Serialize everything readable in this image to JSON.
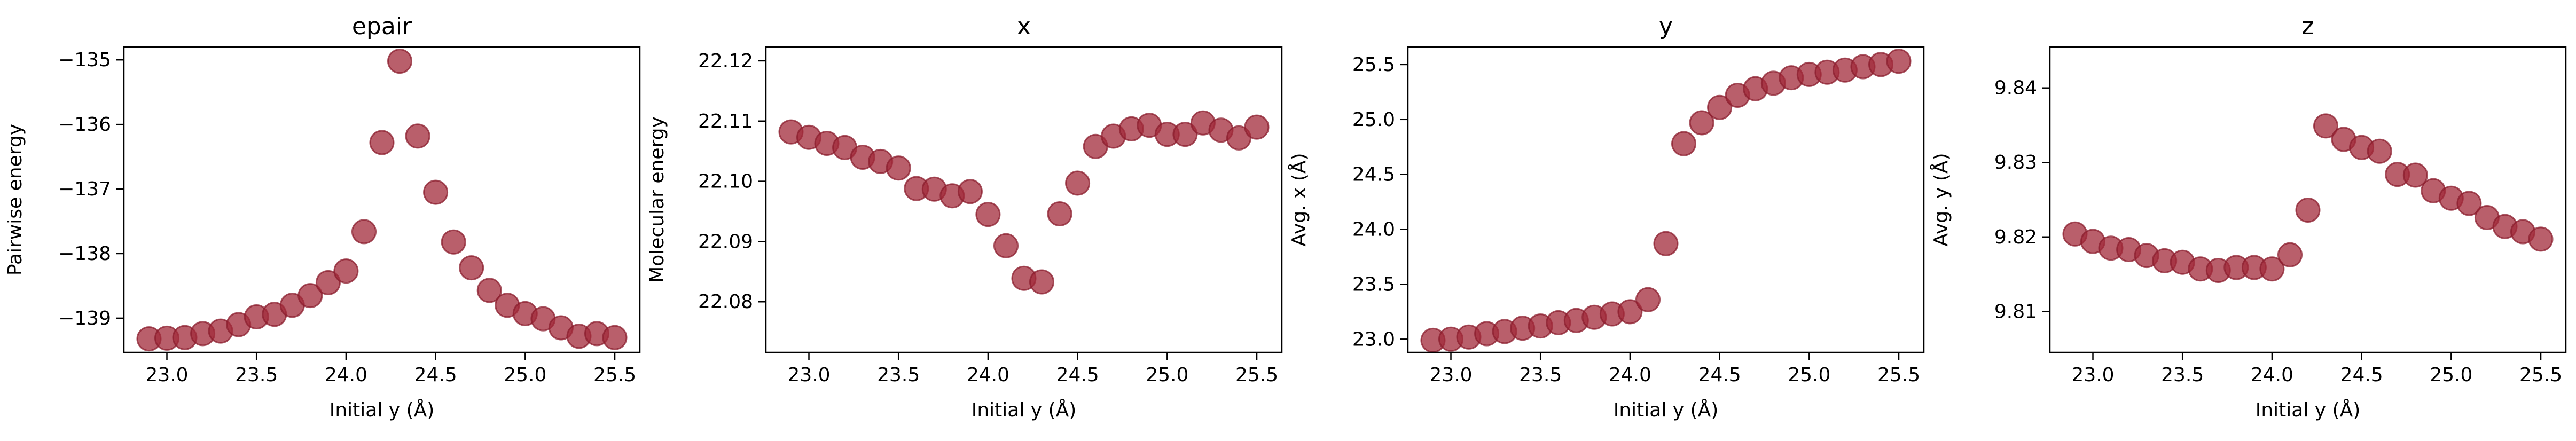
{
  "figure": {
    "point_color": "#a2293a",
    "point_edge_color": "#8b1e2d",
    "point_alpha": 0.75
  },
  "chart_data": [
    {
      "type": "scatter",
      "title": "epair",
      "xlabel": "Initial y (Å)",
      "ylabel": "Pairwise energy",
      "xlim": [
        22.76,
        25.64
      ],
      "ylim": [
        -139.53,
        -134.8
      ],
      "xticks": [
        23.0,
        23.5,
        24.0,
        24.5,
        25.0,
        25.5
      ],
      "xtick_labels": [
        "23.0",
        "23.5",
        "24.0",
        "24.5",
        "25.0",
        "25.5"
      ],
      "yticks": [
        -139,
        -138,
        -137,
        -136,
        -135
      ],
      "ytick_labels": [
        "−139",
        "−138",
        "−137",
        "−136",
        "−135"
      ],
      "x": [
        22.9,
        23.0,
        23.1,
        23.2,
        23.3,
        23.4,
        23.5,
        23.6,
        23.7,
        23.8,
        23.9,
        24.0,
        24.1,
        24.2,
        24.3,
        24.4,
        24.5,
        24.6,
        24.7,
        24.8,
        24.9,
        25.0,
        25.1,
        25.2,
        25.3,
        25.4,
        25.5
      ],
      "y": [
        -139.32,
        -139.31,
        -139.3,
        -139.24,
        -139.2,
        -139.1,
        -138.98,
        -138.94,
        -138.8,
        -138.65,
        -138.45,
        -138.27,
        -137.66,
        -136.28,
        -135.02,
        -136.18,
        -137.05,
        -137.82,
        -138.22,
        -138.57,
        -138.8,
        -138.93,
        -139.01,
        -139.15,
        -139.28,
        -139.24,
        -139.3
      ]
    },
    {
      "type": "scatter",
      "title": "x",
      "xlabel": "Initial y (Å)",
      "ylabel": "Molecular energy",
      "xlim": [
        22.76,
        25.64
      ],
      "ylim": [
        22.0716,
        22.1223
      ],
      "xticks": [
        23.0,
        23.5,
        24.0,
        24.5,
        25.0,
        25.5
      ],
      "xtick_labels": [
        "23.0",
        "23.5",
        "24.0",
        "24.5",
        "25.0",
        "25.5"
      ],
      "yticks": [
        22.08,
        22.09,
        22.1,
        22.11,
        22.12
      ],
      "ytick_labels": [
        "22.08",
        "22.09",
        "22.10",
        "22.11",
        "22.12"
      ],
      "x": [
        22.9,
        23.0,
        23.1,
        23.2,
        23.3,
        23.4,
        23.5,
        23.6,
        23.7,
        23.8,
        23.9,
        24.0,
        24.1,
        24.2,
        24.3,
        24.4,
        24.5,
        24.6,
        24.7,
        24.8,
        24.9,
        25.0,
        25.1,
        25.2,
        25.3,
        25.4,
        25.5
      ],
      "y": [
        22.1082,
        22.1073,
        22.1063,
        22.1056,
        22.104,
        22.1033,
        22.1022,
        22.0988,
        22.0987,
        22.0976,
        22.0983,
        22.0945,
        22.0893,
        22.0839,
        22.0833,
        22.0946,
        22.0997,
        22.1058,
        22.1075,
        22.1087,
        22.1093,
        22.1078,
        22.1078,
        22.1097,
        22.1085,
        22.1072,
        22.109
      ]
    },
    {
      "type": "scatter",
      "title": "y",
      "xlabel": "Initial y (Å)",
      "ylabel": "Avg. x (Å)",
      "xlim": [
        22.76,
        25.64
      ],
      "ylim": [
        22.88,
        25.66
      ],
      "xticks": [
        23.0,
        23.5,
        24.0,
        24.5,
        25.0,
        25.5
      ],
      "xtick_labels": [
        "23.0",
        "23.5",
        "24.0",
        "24.5",
        "25.0",
        "25.5"
      ],
      "yticks": [
        23.0,
        23.5,
        24.0,
        24.5,
        25.0,
        25.5
      ],
      "ytick_labels": [
        "23.0",
        "23.5",
        "24.0",
        "24.5",
        "25.0",
        "25.5"
      ],
      "x": [
        22.9,
        23.0,
        23.1,
        23.2,
        23.3,
        23.4,
        23.5,
        23.6,
        23.7,
        23.8,
        23.9,
        24.0,
        24.1,
        24.2,
        24.3,
        24.4,
        24.5,
        24.6,
        24.7,
        24.8,
        24.9,
        25.0,
        25.1,
        25.2,
        25.3,
        25.4,
        25.5
      ],
      "y": [
        22.99,
        23.0,
        23.02,
        23.05,
        23.07,
        23.1,
        23.12,
        23.15,
        23.17,
        23.2,
        23.23,
        23.25,
        23.36,
        23.87,
        24.78,
        24.97,
        25.11,
        25.22,
        25.28,
        25.33,
        25.38,
        25.41,
        25.43,
        25.45,
        25.48,
        25.5,
        25.53
      ]
    },
    {
      "type": "scatter",
      "title": "z",
      "xlabel": "Initial y (Å)",
      "ylabel": "Avg. y (Å)",
      "xlim": [
        22.76,
        25.64
      ],
      "ylim": [
        9.8045,
        9.8455
      ],
      "xticks": [
        23.0,
        23.5,
        24.0,
        24.5,
        25.0,
        25.5
      ],
      "xtick_labels": [
        "23.0",
        "23.5",
        "24.0",
        "24.5",
        "25.0",
        "25.5"
      ],
      "yticks": [
        9.81,
        9.82,
        9.83,
        9.84
      ],
      "ytick_labels": [
        "9.81",
        "9.82",
        "9.83",
        "9.84"
      ],
      "x": [
        22.9,
        23.0,
        23.1,
        23.2,
        23.3,
        23.4,
        23.5,
        23.6,
        23.7,
        23.8,
        23.9,
        24.0,
        24.1,
        24.2,
        24.3,
        24.4,
        24.5,
        24.6,
        24.7,
        24.8,
        24.9,
        25.0,
        25.1,
        25.2,
        25.3,
        25.4,
        25.5
      ],
      "y": [
        9.8204,
        9.8194,
        9.8185,
        9.8183,
        9.8175,
        9.8168,
        9.8166,
        9.8157,
        9.8155,
        9.8159,
        9.8159,
        9.8157,
        9.8176,
        9.8236,
        9.8349,
        9.8331,
        9.832,
        9.8315,
        9.8284,
        9.8283,
        9.8262,
        9.8252,
        9.8245,
        9.8226,
        9.8214,
        9.8207,
        9.8197
      ]
    }
  ]
}
